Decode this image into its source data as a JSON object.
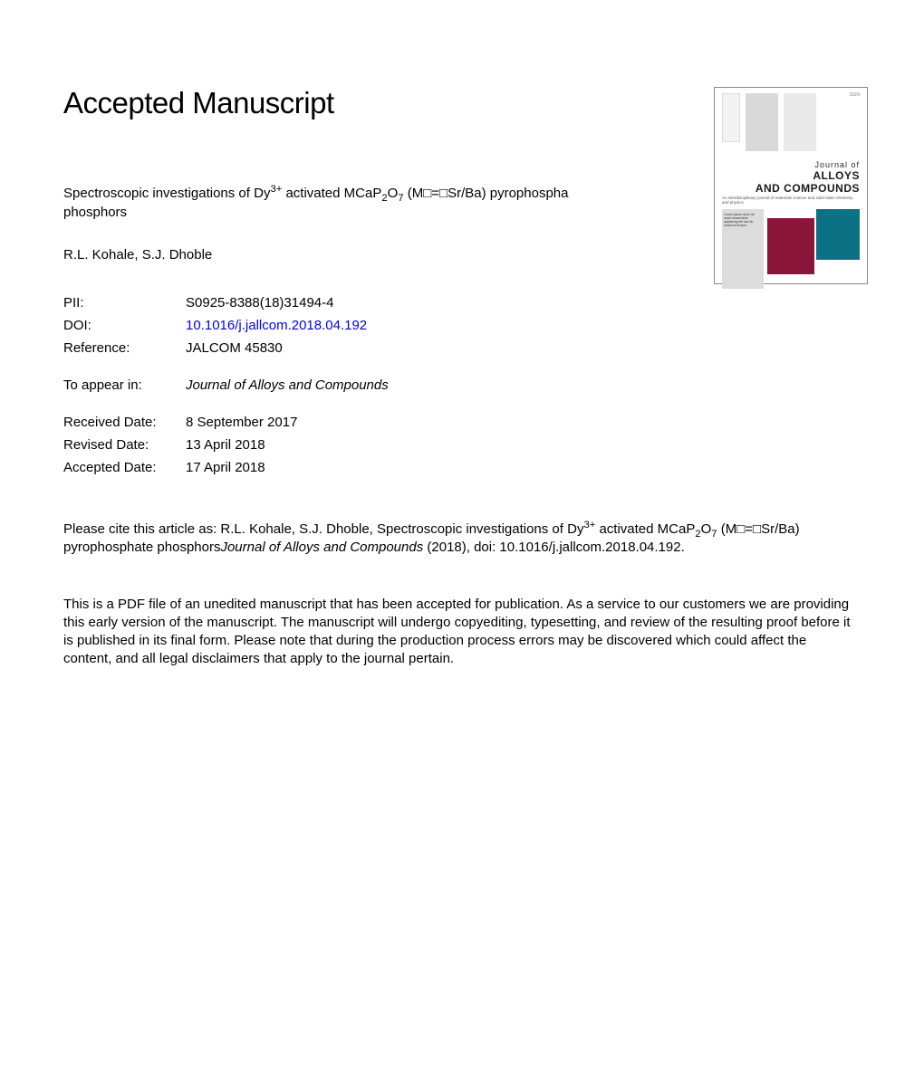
{
  "heading": "Accepted Manuscript",
  "title": {
    "pre": "Spectroscopic investigations of Dy",
    "sup1": "3+",
    "mid1": " activated MCaP",
    "sub1": "2",
    "mid2": "O",
    "sub2": "7",
    "mid3": " (M□=□Sr/Ba) pyrophospha",
    "line2": "phosphors"
  },
  "authors": "R.L. Kohale, S.J. Dhoble",
  "meta": {
    "pii_label": "PII:",
    "pii_value": "S0925-8388(18)31494-4",
    "doi_label": "DOI:",
    "doi_value": "10.1016/j.jallcom.2018.04.192",
    "ref_label": "Reference:",
    "ref_value": "JALCOM 45830",
    "appear_label": "To appear in:",
    "appear_value": "Journal of Alloys and Compounds",
    "received_label": "Received Date:",
    "received_value": "8 September 2017",
    "revised_label": "Revised Date:",
    "revised_value": "13 April 2018",
    "accepted_label": "Accepted Date:",
    "accepted_value": "17 April 2018"
  },
  "citation": {
    "p1": "Please cite this article as: R.L. Kohale, S.J. Dhoble, Spectroscopic investigations of Dy",
    "sup1": "3+",
    "p2": " activated MCaP",
    "sub1": "2",
    "p3": "O",
    "sub2": "7",
    "p4": " (M□=□Sr/Ba) pyrophosphate phosphors",
    "journal": "Journal of Alloys and Compounds",
    "p5": " (2018), doi: 10.1016/j.jallcom.2018.04.192."
  },
  "disclaimer": "This is a PDF file of an unedited manuscript that has been accepted for publication. As a service to our customers we are providing this early version of the manuscript. The manuscript will undergo copyediting, typesetting, and review of the resulting proof before it is published in its final form. Please note that during the production process errors may be discovered which could affect the content, and all legal disclaimers that apply to the journal pertain.",
  "cover": {
    "journal_of": "Journal of",
    "alloys": "ALLOYS",
    "and_compounds": "AND COMPOUNDS",
    "colors": {
      "maroon": "#8a1538",
      "teal": "#0b7285",
      "grey": "#dcdcdc"
    }
  }
}
